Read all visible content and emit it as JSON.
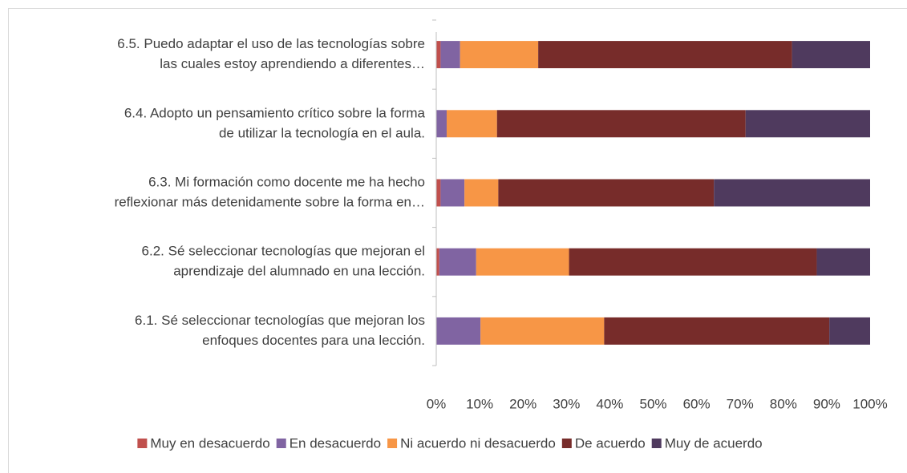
{
  "chart_data": {
    "type": "stacked-barh",
    "categories": [
      [
        "6.5.  Puedo adaptar el uso de las tecnologías sobre",
        "las cuales estoy aprendiendo a diferentes…"
      ],
      [
        "6.4.  Adopto un pensamiento crítico sobre la forma",
        "de utilizar la tecnología en el aula."
      ],
      [
        "6.3.  Mi formación como docente me ha hecho",
        "reflexionar más detenidamente sobre la forma en…"
      ],
      [
        "6.2.  Sé seleccionar tecnologías que mejoran el",
        "aprendizaje del alumnado en una lección."
      ],
      [
        "6.1.  Sé seleccionar tecnologías que mejoran los",
        "enfoques docentes para una lección."
      ]
    ],
    "series": [
      {
        "name": "Muy en desacuerdo",
        "color": "#c0504d",
        "values": [
          1,
          0,
          1,
          0.7,
          0
        ]
      },
      {
        "name": "En desacuerdo",
        "color": "#8064a2",
        "values": [
          4.5,
          2.4,
          5.5,
          8.5,
          10.2
        ]
      },
      {
        "name": "Ni acuerdo ni desacuerdo",
        "color": "#f79646",
        "values": [
          18,
          11.6,
          7.8,
          21.4,
          28.5
        ]
      },
      {
        "name": "De acuerdo",
        "color": "#772c2a",
        "values": [
          58.5,
          57.3,
          49.7,
          57.1,
          51.9
        ]
      },
      {
        "name": "Muy de acuerdo",
        "color": "#4f3a5e",
        "values": [
          18,
          28.7,
          36,
          12.3,
          9.4
        ]
      }
    ],
    "xlim": [
      0,
      100
    ],
    "xticks": [
      {
        "value": 0,
        "label": "0%"
      },
      {
        "value": 10,
        "label": "10%"
      },
      {
        "value": 20,
        "label": "20%"
      },
      {
        "value": 30,
        "label": "30%"
      },
      {
        "value": 40,
        "label": "40%"
      },
      {
        "value": 50,
        "label": "50%"
      },
      {
        "value": 60,
        "label": "60%"
      },
      {
        "value": 70,
        "label": "70%"
      },
      {
        "value": 80,
        "label": "80%"
      },
      {
        "value": 90,
        "label": "90%"
      },
      {
        "value": 100,
        "label": "100%"
      }
    ],
    "legend": "bottom"
  }
}
